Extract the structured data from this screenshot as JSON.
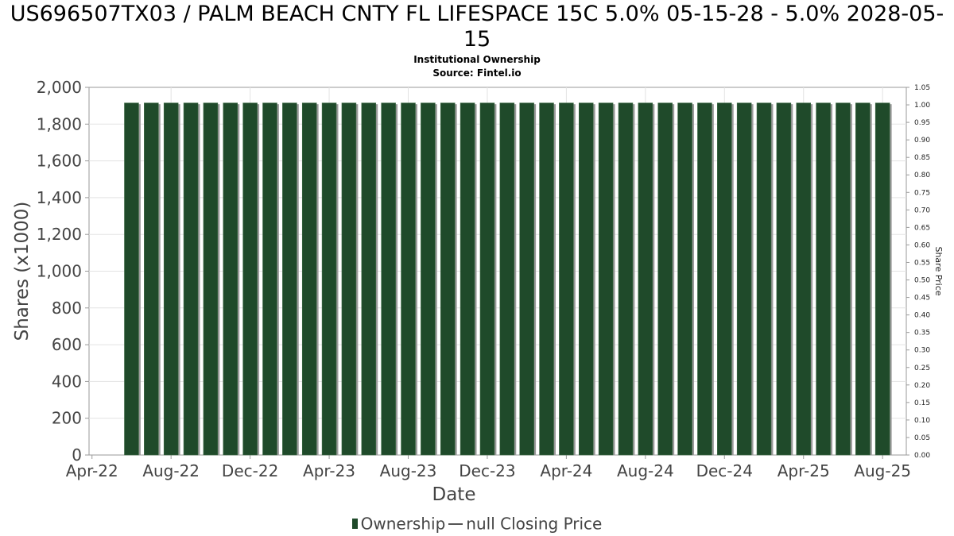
{
  "title": "US696507TX03 / PALM BEACH CNTY FL LIFESPACE 15C 5.0% 05-15-28 - 5.0% 2028-05-15",
  "subtitle": "Institutional Ownership",
  "source": "Source: Fintel.io",
  "colors": {
    "bar": "#1f4a2a",
    "bar_shadow": "#9a9a9a",
    "grid": "#e3e3e3",
    "axis_text": "#444444"
  },
  "legend": {
    "ownership": "Ownership",
    "closing_price": "null Closing Price"
  },
  "chart_data": {
    "type": "bar",
    "title": "US696507TX03 / PALM BEACH CNTY FL LIFESPACE 15C 5.0% 05-15-28 - 5.0% 2028-05-15",
    "xlabel": "Date",
    "ylabel": "Shares (x1000)",
    "y2label": "Share Price",
    "ylim": [
      0,
      2000
    ],
    "y2lim": [
      0,
      1.05
    ],
    "yticks": [
      "0",
      "200",
      "400",
      "600",
      "800",
      "1,000",
      "1,200",
      "1,400",
      "1,600",
      "1,800",
      "2,000"
    ],
    "y2ticks": [
      "0.00",
      "0.05",
      "0.10",
      "0.15",
      "0.20",
      "0.25",
      "0.30",
      "0.35",
      "0.40",
      "0.45",
      "0.50",
      "0.55",
      "0.60",
      "0.65",
      "0.70",
      "0.75",
      "0.80",
      "0.85",
      "0.90",
      "0.95",
      "1.00",
      "1.05"
    ],
    "xticks": [
      "Apr-22",
      "Aug-22",
      "Dec-22",
      "Apr-23",
      "Aug-23",
      "Dec-23",
      "Apr-24",
      "Aug-24",
      "Dec-24",
      "Apr-25",
      "Aug-25"
    ],
    "x_start": "2022-04",
    "x_end": "2025-09",
    "grid": true,
    "legend_position": "bottom",
    "series": [
      {
        "name": "Ownership",
        "x": [
          "2022-06",
          "2022-07",
          "2022-08",
          "2022-09",
          "2022-10",
          "2022-11",
          "2022-12",
          "2023-01",
          "2023-02",
          "2023-03",
          "2023-04",
          "2023-05",
          "2023-06",
          "2023-07",
          "2023-08",
          "2023-09",
          "2023-10",
          "2023-11",
          "2023-12",
          "2024-01",
          "2024-02",
          "2024-03",
          "2024-04",
          "2024-05",
          "2024-06",
          "2024-07",
          "2024-08",
          "2024-09",
          "2024-10",
          "2024-11",
          "2024-12",
          "2025-01",
          "2025-02",
          "2025-03",
          "2025-04",
          "2025-05",
          "2025-06",
          "2025-07",
          "2025-08"
        ],
        "values": [
          1915,
          1915,
          1915,
          1915,
          1915,
          1915,
          1915,
          1915,
          1915,
          1915,
          1915,
          1915,
          1915,
          1915,
          1915,
          1915,
          1915,
          1915,
          1915,
          1915,
          1915,
          1915,
          1915,
          1915,
          1915,
          1915,
          1915,
          1915,
          1915,
          1915,
          1915,
          1915,
          1915,
          1915,
          1915,
          1915,
          1915,
          1915,
          1915
        ]
      }
    ]
  }
}
